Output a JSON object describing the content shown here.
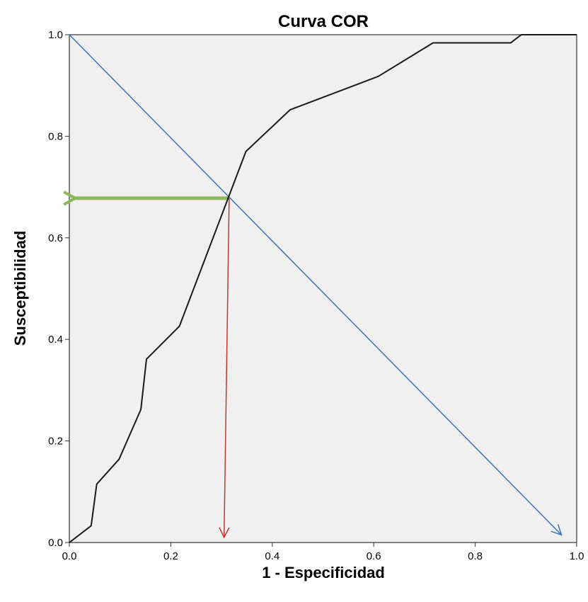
{
  "chart_data": {
    "type": "line",
    "title": "Curva COR",
    "xlabel": "1 - Especificidad",
    "ylabel": "Susceptibilidad",
    "xlim": [
      0,
      1
    ],
    "ylim": [
      0,
      1
    ],
    "xticks": [
      "0.0",
      "0.2",
      "0.4",
      "0.6",
      "0.8",
      "1.0"
    ],
    "yticks": [
      "0.0",
      "0.2",
      "0.4",
      "0.6",
      "0.8",
      "1.0"
    ],
    "grid": false,
    "plot_background": "#f0f0f0",
    "series": [
      {
        "color": "#1a1a1a",
        "x": [
          0.0,
          0.043,
          0.054,
          0.098,
          0.141,
          0.152,
          0.217,
          0.348,
          0.435,
          0.609,
          0.717,
          0.87,
          0.891,
          1.0
        ],
        "y": [
          0.0,
          0.033,
          0.115,
          0.164,
          0.262,
          0.361,
          0.426,
          0.77,
          0.852,
          0.918,
          0.984,
          0.984,
          1.0,
          1.0
        ]
      }
    ],
    "annotations": [
      {
        "kind": "diagonal-arrow",
        "color": "#3b73b9",
        "from": [
          0.0,
          1.0
        ],
        "to": [
          0.97,
          0.015
        ]
      },
      {
        "kind": "horizontal-arrow",
        "color": "#8bb858",
        "from": [
          0.31,
          0.678
        ],
        "to": [
          0.0,
          0.678
        ]
      },
      {
        "kind": "vertical-arrow",
        "color": "#c0392b",
        "from": [
          0.315,
          0.678
        ],
        "to": [
          0.305,
          0.01
        ]
      }
    ]
  }
}
